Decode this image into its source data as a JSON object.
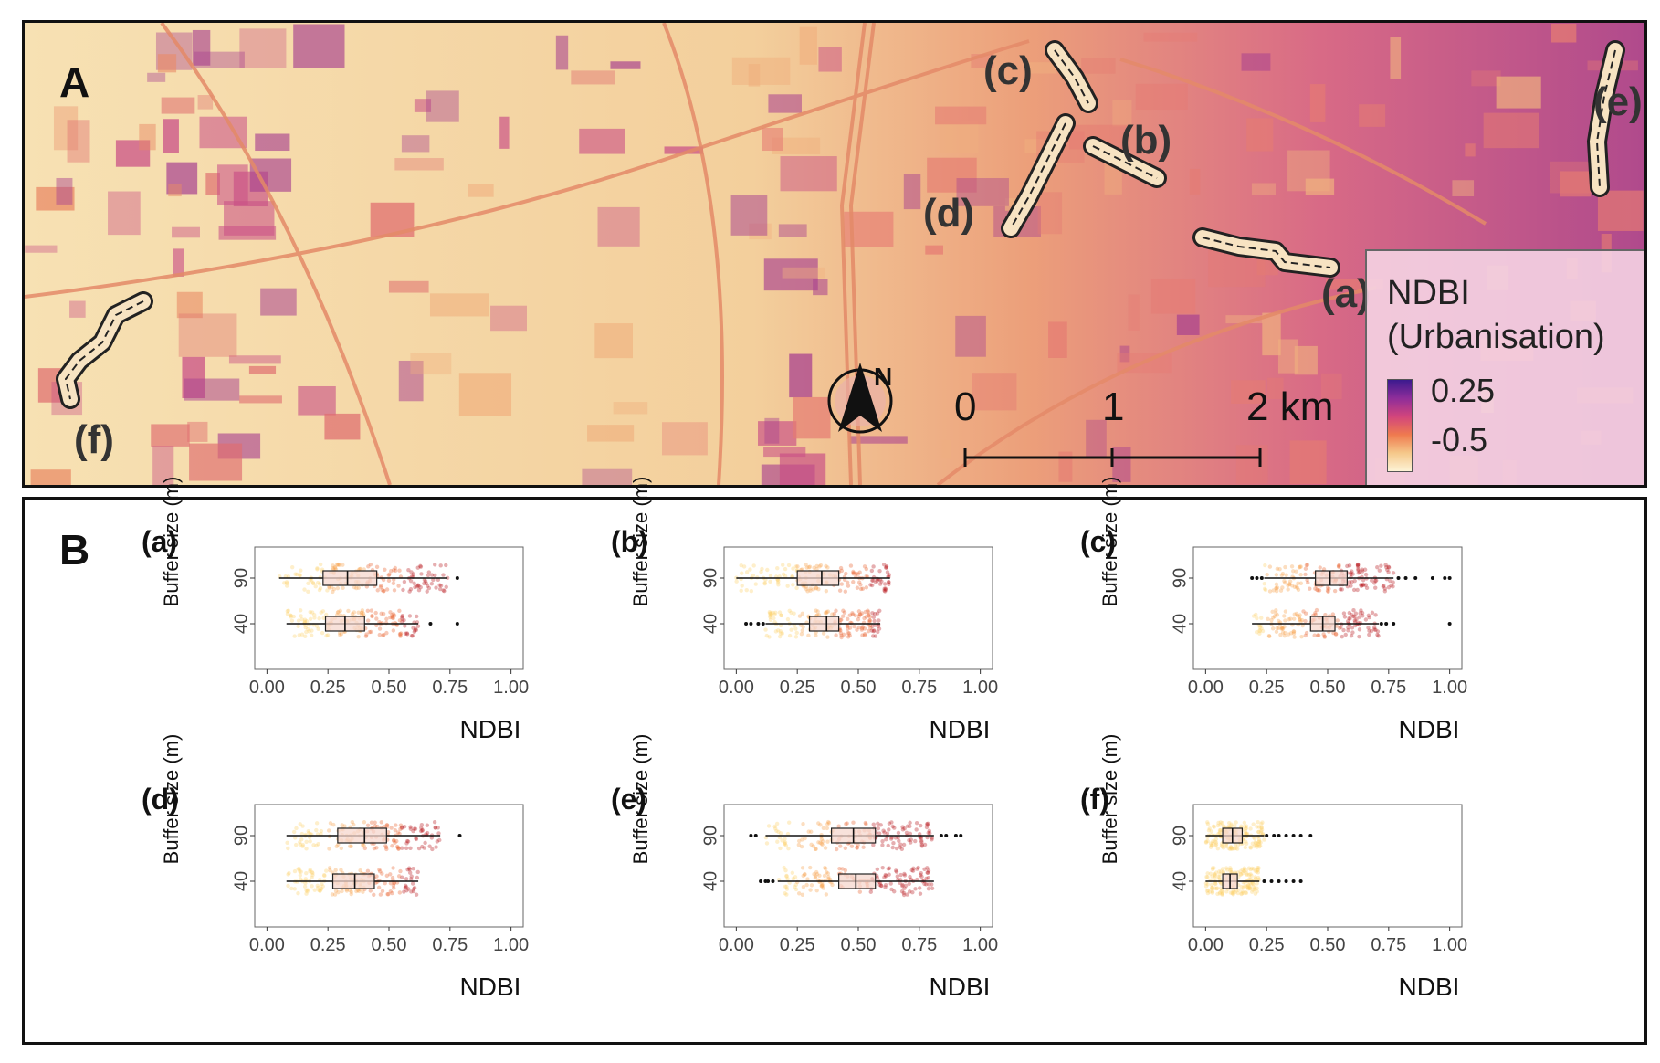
{
  "panel_a": {
    "letter": "A",
    "legend": {
      "title_line1": "NDBI",
      "title_line2": "(Urbanisation)",
      "max_label": "0.25",
      "min_label": "-0.5",
      "colors": [
        "#3b1a8e",
        "#8e2d9a",
        "#d2457c",
        "#ef7a4f",
        "#f5c88a",
        "#fdf3d6"
      ]
    },
    "scale_bar": {
      "ticks": [
        "0",
        "1",
        "2 km"
      ]
    },
    "north_label": "N",
    "route_labels": [
      "(a)",
      "(b)",
      "(c)",
      "(d)",
      "(e)",
      "(f)"
    ]
  },
  "panel_b": {
    "letter": "B"
  },
  "chart_data": [
    {
      "type": "boxplot",
      "panel": "(a)",
      "xlabel": "NDBI",
      "ylabel": "Buffer size (m)",
      "xlim": [
        -0.05,
        1.05
      ],
      "xticks": [
        "0.00",
        "0.25",
        "0.50",
        "0.75",
        "1.00"
      ],
      "categories": [
        "40",
        "90"
      ],
      "boxes": [
        {
          "name": "90",
          "whisker_low": 0.05,
          "q1": 0.23,
          "median": 0.33,
          "q3": 0.45,
          "whisker_high": 0.74,
          "outliers": [
            0.78
          ]
        },
        {
          "name": "40",
          "whisker_low": 0.08,
          "q1": 0.24,
          "median": 0.32,
          "q3": 0.4,
          "whisker_high": 0.62,
          "outliers": [
            0.67,
            0.78
          ]
        }
      ]
    },
    {
      "type": "boxplot",
      "panel": "(b)",
      "xlabel": "NDBI",
      "ylabel": "Buffer size (m)",
      "xlim": [
        -0.05,
        1.05
      ],
      "xticks": [
        "0.00",
        "0.25",
        "0.50",
        "0.75",
        "1.00"
      ],
      "categories": [
        "40",
        "90"
      ],
      "boxes": [
        {
          "name": "90",
          "whisker_low": 0.0,
          "q1": 0.25,
          "median": 0.35,
          "q3": 0.42,
          "whisker_high": 0.63,
          "outliers": []
        },
        {
          "name": "40",
          "whisker_low": 0.12,
          "q1": 0.3,
          "median": 0.37,
          "q3": 0.42,
          "whisker_high": 0.59,
          "outliers": [
            0.04,
            0.06,
            0.09,
            0.11
          ]
        }
      ]
    },
    {
      "type": "boxplot",
      "panel": "(c)",
      "xlabel": "NDBI",
      "ylabel": "Buffer size (m)",
      "xlim": [
        -0.05,
        1.05
      ],
      "xticks": [
        "0.00",
        "0.25",
        "0.50",
        "0.75",
        "1.00"
      ],
      "categories": [
        "40",
        "90"
      ],
      "boxes": [
        {
          "name": "90",
          "whisker_low": 0.24,
          "q1": 0.45,
          "median": 0.51,
          "q3": 0.58,
          "whisker_high": 0.77,
          "outliers": [
            0.19,
            0.21,
            0.23,
            0.79,
            0.82,
            0.86,
            0.93,
            0.98,
            1.0
          ]
        },
        {
          "name": "40",
          "whisker_low": 0.19,
          "q1": 0.43,
          "median": 0.48,
          "q3": 0.53,
          "whisker_high": 0.71,
          "outliers": [
            0.72,
            0.74,
            0.77,
            1.0
          ]
        }
      ]
    },
    {
      "type": "boxplot",
      "panel": "(d)",
      "xlabel": "NDBI",
      "ylabel": "Buffer size (m)",
      "xlim": [
        -0.05,
        1.05
      ],
      "xticks": [
        "0.00",
        "0.25",
        "0.50",
        "0.75",
        "1.00"
      ],
      "categories": [
        "40",
        "90"
      ],
      "boxes": [
        {
          "name": "90",
          "whisker_low": 0.08,
          "q1": 0.29,
          "median": 0.4,
          "q3": 0.49,
          "whisker_high": 0.71,
          "outliers": [
            0.79
          ]
        },
        {
          "name": "40",
          "whisker_low": 0.08,
          "q1": 0.27,
          "median": 0.36,
          "q3": 0.44,
          "whisker_high": 0.62,
          "outliers": []
        }
      ]
    },
    {
      "type": "boxplot",
      "panel": "(e)",
      "xlabel": "NDBI",
      "ylabel": "Buffer size (m)",
      "xlim": [
        -0.05,
        1.05
      ],
      "xticks": [
        "0.00",
        "0.25",
        "0.50",
        "0.75",
        "1.00"
      ],
      "categories": [
        "40",
        "90"
      ],
      "boxes": [
        {
          "name": "90",
          "whisker_low": 0.12,
          "q1": 0.39,
          "median": 0.48,
          "q3": 0.57,
          "whisker_high": 0.81,
          "outliers": [
            0.06,
            0.08,
            0.84,
            0.86,
            0.9,
            0.92
          ]
        },
        {
          "name": "40",
          "whisker_low": 0.17,
          "q1": 0.42,
          "median": 0.49,
          "q3": 0.57,
          "whisker_high": 0.81,
          "outliers": [
            0.1,
            0.12,
            0.13,
            0.15
          ]
        }
      ]
    },
    {
      "type": "boxplot",
      "panel": "(f)",
      "xlabel": "NDBI",
      "ylabel": "Buffer size (m)",
      "xlim": [
        -0.05,
        1.05
      ],
      "xticks": [
        "0.00",
        "0.25",
        "0.50",
        "0.75",
        "1.00"
      ],
      "categories": [
        "40",
        "90"
      ],
      "boxes": [
        {
          "name": "90",
          "whisker_low": 0.0,
          "q1": 0.07,
          "median": 0.11,
          "q3": 0.15,
          "whisker_high": 0.24,
          "outliers": [
            0.25,
            0.28,
            0.3,
            0.33,
            0.36,
            0.39,
            0.43
          ]
        },
        {
          "name": "40",
          "whisker_low": 0.0,
          "q1": 0.07,
          "median": 0.1,
          "q3": 0.13,
          "whisker_high": 0.22,
          "outliers": [
            0.24,
            0.27,
            0.3,
            0.33,
            0.36,
            0.39
          ]
        }
      ]
    }
  ]
}
